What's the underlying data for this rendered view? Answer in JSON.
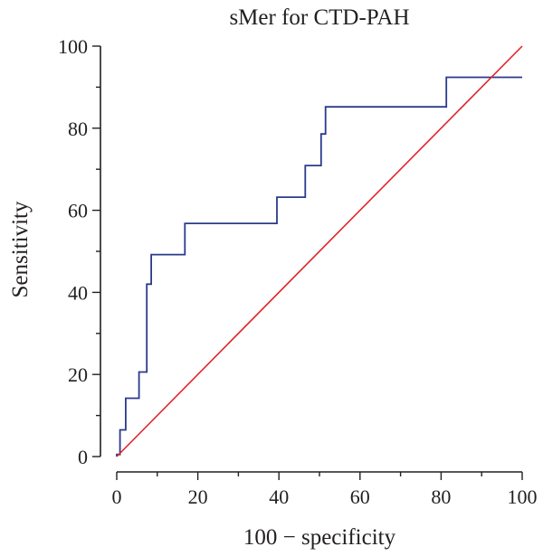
{
  "chart_data": {
    "type": "line",
    "title": "sMer for CTD-PAH",
    "xlabel": "100 − specificity",
    "ylabel": "Sensitivity",
    "xlim": [
      0,
      100
    ],
    "ylim": [
      0,
      100
    ],
    "x_ticks": [
      0,
      20,
      40,
      60,
      80,
      100
    ],
    "y_ticks": [
      0,
      20,
      40,
      60,
      80,
      100
    ],
    "x_tick_labels": [
      "0",
      "20",
      "40",
      "60",
      "80",
      "100"
    ],
    "y_tick_labels": [
      "0",
      "20",
      "40",
      "60",
      "80",
      "100"
    ],
    "grid": false,
    "series": [
      {
        "style": "step",
        "color": "#2b3a8c",
        "x": [
          0,
          0,
          0.8,
          0.8,
          2.2,
          2.2,
          5.5,
          5.5,
          7.4,
          7.4,
          8.5,
          8.5,
          16.8,
          16.8,
          39.5,
          39.5,
          46.5,
          46.5,
          50.4,
          50.4,
          51.5,
          51.5,
          81.3,
          81.3,
          100
        ],
        "y": [
          0,
          0.5,
          0.5,
          6.5,
          6.5,
          14.2,
          14.2,
          20.6,
          20.6,
          42,
          42,
          49.2,
          49.2,
          56.8,
          56.8,
          63.2,
          63.2,
          70.9,
          70.9,
          78.6,
          78.6,
          85.2,
          85.2,
          92.4,
          92.4
        ]
      },
      {
        "style": "reference",
        "color": "#e0242b",
        "x": [
          0,
          100
        ],
        "y": [
          0,
          100
        ]
      }
    ]
  }
}
